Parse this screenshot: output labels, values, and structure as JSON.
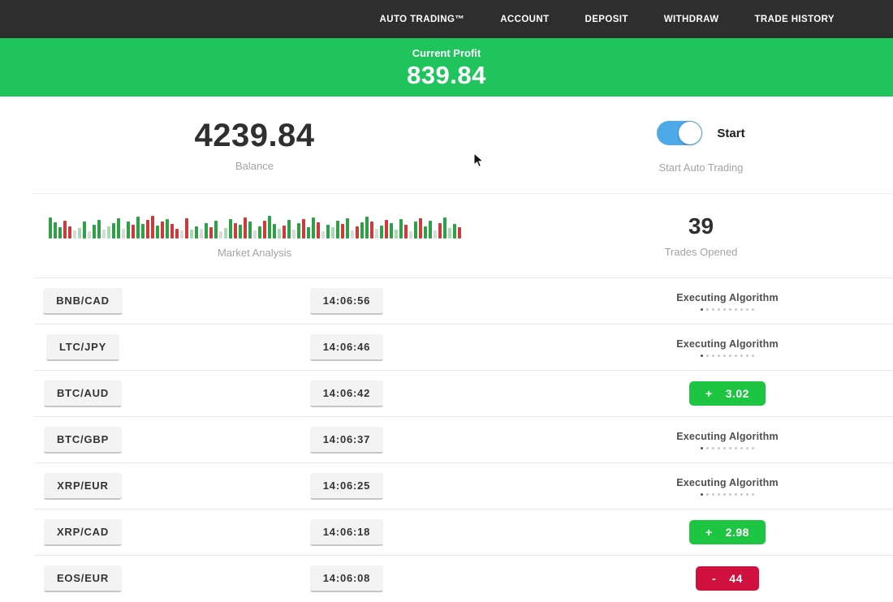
{
  "colors": {
    "nav-bg": "#2e2e2e",
    "green": "#1fc45c",
    "badge-green": "#1ec542",
    "badge-red": "#d0103e",
    "toggle-blue": "#4da9ea"
  },
  "nav": {
    "items": [
      "AUTO TRADING™",
      "ACCOUNT",
      "DEPOSIT",
      "WITHDRAW",
      "TRADE HISTORY"
    ]
  },
  "profit_banner": {
    "label": "Current Profit",
    "value": "839.84"
  },
  "account": {
    "balance": "4239.84",
    "balance_label": "Balance",
    "toggle_label": "Start",
    "toggle_caption": "Start Auto Trading",
    "toggle_on": true
  },
  "market": {
    "label": "Market Analysis",
    "trades_opened": "39",
    "trades_label": "Trades Opened",
    "bars": [
      [
        "g",
        26
      ],
      [
        "g",
        20
      ],
      [
        "g",
        14
      ],
      [
        "r",
        22
      ],
      [
        "r",
        15
      ],
      [
        "n",
        10
      ],
      [
        "lg",
        13
      ],
      [
        "g",
        21
      ],
      [
        "n",
        9
      ],
      [
        "g",
        17
      ],
      [
        "g",
        23
      ],
      [
        "n",
        11
      ],
      [
        "lg",
        15
      ],
      [
        "g",
        19
      ],
      [
        "g",
        25
      ],
      [
        "n",
        12
      ],
      [
        "g",
        21
      ],
      [
        "r",
        17
      ],
      [
        "g",
        27
      ],
      [
        "g",
        18
      ],
      [
        "r",
        23
      ],
      [
        "r",
        28
      ],
      [
        "g",
        16
      ],
      [
        "r",
        21
      ],
      [
        "g",
        24
      ],
      [
        "r",
        18
      ],
      [
        "r",
        12
      ],
      [
        "n",
        10
      ],
      [
        "r",
        25
      ],
      [
        "lg",
        11
      ],
      [
        "g",
        15
      ],
      [
        "n",
        12
      ],
      [
        "g",
        19
      ],
      [
        "r",
        14
      ],
      [
        "g",
        22
      ],
      [
        "n",
        9
      ],
      [
        "lg",
        13
      ],
      [
        "g",
        24
      ],
      [
        "r",
        19
      ],
      [
        "g",
        17
      ],
      [
        "r",
        26
      ],
      [
        "g",
        21
      ],
      [
        "n",
        10
      ],
      [
        "g",
        15
      ],
      [
        "r",
        22
      ],
      [
        "g",
        28
      ],
      [
        "g",
        18
      ],
      [
        "lg",
        12
      ],
      [
        "r",
        16
      ],
      [
        "g",
        23
      ],
      [
        "n",
        11
      ],
      [
        "g",
        19
      ],
      [
        "r",
        24
      ],
      [
        "g",
        14
      ],
      [
        "g",
        26
      ],
      [
        "r",
        20
      ],
      [
        "n",
        9
      ],
      [
        "g",
        17
      ],
      [
        "lg",
        14
      ],
      [
        "g",
        22
      ],
      [
        "r",
        18
      ],
      [
        "g",
        25
      ],
      [
        "n",
        10
      ],
      [
        "r",
        15
      ],
      [
        "g",
        20
      ],
      [
        "g",
        27
      ],
      [
        "r",
        21
      ],
      [
        "n",
        12
      ],
      [
        "g",
        16
      ],
      [
        "r",
        23
      ],
      [
        "g",
        19
      ],
      [
        "lg",
        11
      ],
      [
        "g",
        24
      ],
      [
        "r",
        17
      ],
      [
        "n",
        9
      ],
      [
        "g",
        21
      ],
      [
        "r",
        25
      ],
      [
        "g",
        15
      ],
      [
        "g",
        22
      ],
      [
        "n",
        10
      ],
      [
        "r",
        19
      ],
      [
        "g",
        26
      ],
      [
        "lg",
        13
      ],
      [
        "g",
        18
      ],
      [
        "r",
        14
      ]
    ]
  },
  "trades": [
    {
      "pair": "BNB/CAD",
      "time": "14:06:56",
      "status": "executing",
      "status_label": "Executing Algorithm"
    },
    {
      "pair": "LTC/JPY",
      "time": "14:06:46",
      "status": "executing",
      "status_label": "Executing Algorithm"
    },
    {
      "pair": "BTC/AUD",
      "time": "14:06:42",
      "status": "profit",
      "sign": "+",
      "value": "3.02"
    },
    {
      "pair": "BTC/GBP",
      "time": "14:06:37",
      "status": "executing",
      "status_label": "Executing Algorithm"
    },
    {
      "pair": "XRP/EUR",
      "time": "14:06:25",
      "status": "executing",
      "status_label": "Executing Algorithm"
    },
    {
      "pair": "XRP/CAD",
      "time": "14:06:18",
      "status": "profit",
      "sign": "+",
      "value": "2.98"
    },
    {
      "pair": "EOS/EUR",
      "time": "14:06:08",
      "status": "loss",
      "sign": "-",
      "value": "44"
    }
  ]
}
